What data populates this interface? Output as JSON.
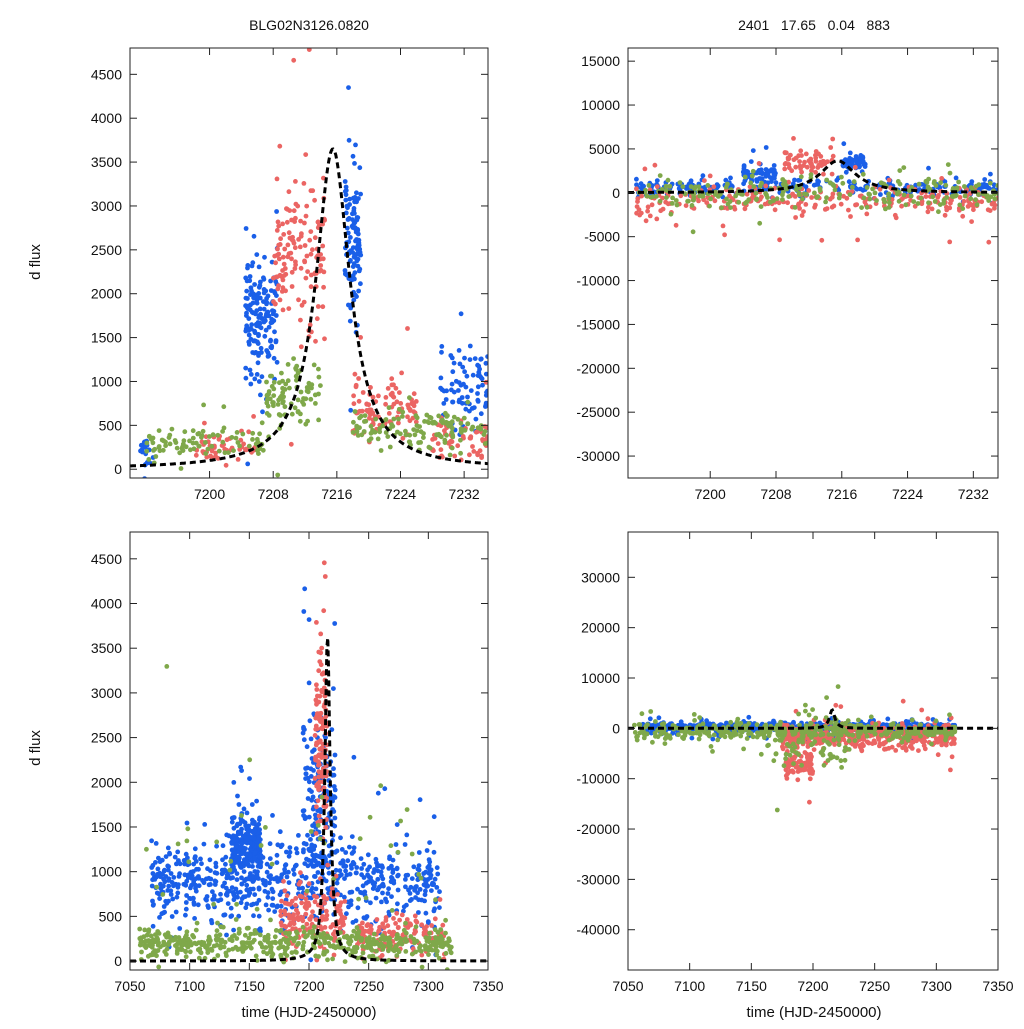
{
  "figure": {
    "title_left": "BLG02N3126.0820",
    "title_right": "2401   17.65   0.04   883",
    "ylabel": "d flux",
    "xlabel": "time (HJD-2450000)"
  },
  "colors": {
    "series_a": "#1a5fe8",
    "series_b": "#eb6563",
    "series_c": "#7fa84a",
    "model": "#000000",
    "frame": "#222222"
  },
  "chart_data": [
    {
      "id": "top-left",
      "type": "scatter",
      "title": "BLG02N3126.0820",
      "xlabel": "",
      "ylabel": "d flux",
      "xlim": [
        7190,
        7235
      ],
      "ylim": [
        -100,
        4800
      ],
      "xticks": [
        7200,
        7208,
        7216,
        7224,
        7232
      ],
      "yticks": [
        0,
        500,
        1000,
        1500,
        2000,
        2500,
        3000,
        3500,
        4000,
        4500
      ],
      "model": {
        "t0": 7215.5,
        "peak": 3650,
        "tE": 2.6,
        "style": "dashed"
      },
      "series": [
        {
          "name": "blue",
          "color": "#1a5fe8",
          "clusters": [
            [
              7191,
              7193,
              150,
              300,
              20
            ],
            [
              7204.5,
              7208.5,
              1700,
              900,
              160
            ],
            [
              7217,
              7219,
              2600,
              1100,
              110
            ],
            [
              7229,
              7235,
              900,
              700,
              80
            ]
          ]
        },
        {
          "name": "red",
          "color": "#eb6563",
          "clusters": [
            [
              7198,
              7206,
              250,
              250,
              50
            ],
            [
              7208,
              7214.5,
              2500,
              1200,
              140
            ],
            [
              7218,
              7226,
              700,
              500,
              90
            ],
            [
              7228,
              7235,
              350,
              350,
              60
            ]
          ]
        },
        {
          "name": "green",
          "color": "#7fa84a",
          "clusters": [
            [
              7192,
              7207,
              300,
              250,
              90
            ],
            [
              7207,
              7214,
              900,
              500,
              90
            ],
            [
              7218,
              7235,
              450,
              350,
              130
            ]
          ]
        }
      ]
    },
    {
      "id": "top-right",
      "type": "scatter",
      "title": "2401   17.65   0.04   883",
      "xlabel": "",
      "ylabel": "",
      "xlim": [
        7190,
        7235
      ],
      "ylim": [
        -32500,
        16500
      ],
      "xticks": [
        7200,
        7208,
        7216,
        7224,
        7232
      ],
      "yticks": [
        15000,
        10000,
        5000,
        0,
        -5000,
        -10000,
        -15000,
        -20000,
        -25000,
        -30000
      ],
      "model": {
        "t0": 7215.5,
        "peak": 3650,
        "tE": 2.6,
        "style": "dashed"
      },
      "series": [
        {
          "name": "blue",
          "color": "#1a5fe8",
          "clusters": [
            [
              7191,
              7235,
              600,
              1500,
              260
            ],
            [
              7204,
              7208,
              2200,
              1500,
              60
            ],
            [
              7216,
              7219,
              3500,
              1500,
              50
            ]
          ]
        },
        {
          "name": "red",
          "color": "#eb6563",
          "clusters": [
            [
              7191,
              7235,
              -800,
              2500,
              260
            ],
            [
              7209,
              7215,
              3500,
              2000,
              60
            ]
          ]
        },
        {
          "name": "green",
          "color": "#7fa84a",
          "clusters": [
            [
              7191,
              7235,
              0,
              2500,
              230
            ]
          ]
        }
      ]
    },
    {
      "id": "bottom-left",
      "type": "scatter",
      "title": "",
      "xlabel": "time (HJD-2450000)",
      "ylabel": "d flux",
      "xlim": [
        7050,
        7350
      ],
      "ylim": [
        -100,
        4800
      ],
      "xticks": [
        7050,
        7100,
        7150,
        7200,
        7250,
        7300,
        7350
      ],
      "yticks": [
        0,
        500,
        1000,
        1500,
        2000,
        2500,
        3000,
        3500,
        4000,
        4500
      ],
      "model": {
        "t0": 7215.5,
        "peak": 3650,
        "tE": 2.6,
        "style": "dashed"
      },
      "series": [
        {
          "name": "blue",
          "color": "#1a5fe8",
          "clusters": [
            [
              7068,
              7310,
              900,
              700,
              650
            ],
            [
              7135,
              7160,
              1300,
              500,
              260
            ],
            [
              7195,
              7222,
              1800,
              1500,
              160
            ]
          ]
        },
        {
          "name": "red",
          "color": "#eb6563",
          "clusters": [
            [
              7175,
              7230,
              500,
              500,
              150
            ],
            [
              7205,
              7215,
              2500,
              1400,
              130
            ],
            [
              7240,
              7315,
              300,
              300,
              150
            ]
          ]
        },
        {
          "name": "green",
          "color": "#7fa84a",
          "clusters": [
            [
              7058,
              7320,
              200,
              250,
              500
            ],
            [
              7060,
              7320,
              1200,
              1500,
              40
            ]
          ]
        }
      ]
    },
    {
      "id": "bottom-right",
      "type": "scatter",
      "title": "",
      "xlabel": "time (HJD-2450000)",
      "ylabel": "",
      "xlim": [
        7050,
        7350
      ],
      "ylim": [
        -48000,
        39000
      ],
      "xticks": [
        7050,
        7100,
        7150,
        7200,
        7250,
        7300,
        7350
      ],
      "yticks": [
        30000,
        20000,
        10000,
        0,
        -10000,
        -20000,
        -30000,
        -40000
      ],
      "model": {
        "t0": 7215.5,
        "peak": 3650,
        "tE": 2.6,
        "style": "dashed"
      },
      "series": [
        {
          "name": "blue",
          "color": "#1a5fe8",
          "clusters": [
            [
              7062,
              7315,
              200,
              1200,
              900
            ]
          ]
        },
        {
          "name": "red",
          "color": "#eb6563",
          "clusters": [
            [
              7175,
              7315,
              -1500,
              3500,
              450
            ],
            [
              7178,
              7200,
              -7000,
              4000,
              80
            ]
          ]
        },
        {
          "name": "green",
          "color": "#7fa84a",
          "clusters": [
            [
              7055,
              7315,
              -600,
              2500,
              350
            ],
            [
              7160,
              7230,
              -2000,
              8000,
              90
            ]
          ]
        }
      ]
    }
  ]
}
